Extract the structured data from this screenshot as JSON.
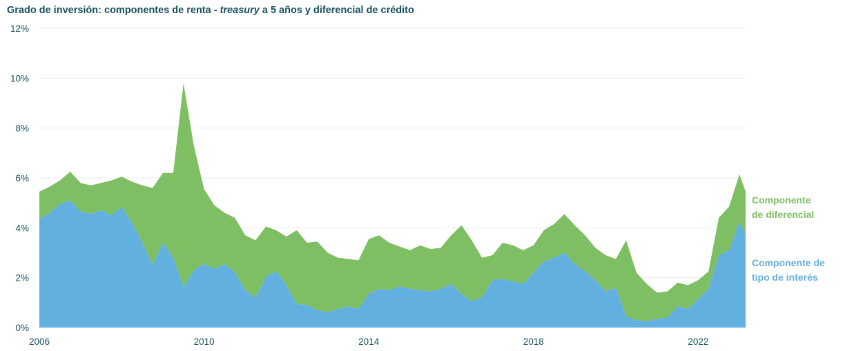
{
  "title": {
    "part1": "Grado de inversión: componentes de renta - ",
    "italic": "treasury",
    "part2": " a 5 años y diferencial de crédito"
  },
  "colors": {
    "title": "#16515f",
    "spread": "#7fbf63",
    "rate": "#62b0e0",
    "axis": "#16515f",
    "grid": "#e8ebee"
  },
  "chart_data": {
    "type": "area",
    "stacked": true,
    "title": "Grado de inversión: componentes de renta - treasury a 5 años y diferencial de crédito",
    "xlabel": "",
    "ylabel": "",
    "xlim": [
      2006.0,
      2023.15
    ],
    "ylim": [
      0,
      12
    ],
    "grid": true,
    "legend": "right",
    "x_ticks": [
      "2006",
      "2010",
      "2014",
      "2018",
      "2022"
    ],
    "y_ticks": [
      "0%",
      "2%",
      "4%",
      "6%",
      "8%",
      "10%",
      "12%"
    ],
    "x": [
      2006.0,
      2006.25,
      2006.5,
      2006.75,
      2007.0,
      2007.25,
      2007.5,
      2007.75,
      2008.0,
      2008.25,
      2008.5,
      2008.75,
      2009.0,
      2009.25,
      2009.5,
      2009.75,
      2010.0,
      2010.25,
      2010.5,
      2010.75,
      2011.0,
      2011.25,
      2011.5,
      2011.75,
      2012.0,
      2012.25,
      2012.5,
      2012.75,
      2013.0,
      2013.25,
      2013.5,
      2013.75,
      2014.0,
      2014.25,
      2014.5,
      2014.75,
      2015.0,
      2015.25,
      2015.5,
      2015.75,
      2016.0,
      2016.25,
      2016.5,
      2016.75,
      2017.0,
      2017.25,
      2017.5,
      2017.75,
      2018.0,
      2018.25,
      2018.5,
      2018.75,
      2019.0,
      2019.25,
      2019.5,
      2019.75,
      2020.0,
      2020.25,
      2020.5,
      2020.75,
      2021.0,
      2021.25,
      2021.5,
      2021.75,
      2022.0,
      2022.25,
      2022.5,
      2022.75,
      2023.0,
      2023.15
    ],
    "series": [
      {
        "name": "Componente de tipo de interés",
        "values": [
          4.35,
          4.6,
          4.95,
          5.1,
          4.65,
          4.55,
          4.7,
          4.5,
          4.85,
          4.2,
          3.4,
          2.5,
          3.4,
          2.8,
          1.6,
          2.3,
          2.55,
          2.35,
          2.55,
          2.2,
          1.5,
          1.2,
          2.05,
          2.25,
          1.7,
          0.95,
          0.9,
          0.7,
          0.6,
          0.75,
          0.85,
          0.75,
          1.35,
          1.55,
          1.5,
          1.65,
          1.55,
          1.5,
          1.45,
          1.55,
          1.75,
          1.35,
          1.05,
          1.2,
          1.9,
          1.95,
          1.85,
          1.75,
          2.2,
          2.65,
          2.8,
          3.0,
          2.55,
          2.25,
          1.9,
          1.45,
          1.6,
          0.45,
          0.3,
          0.25,
          0.35,
          0.4,
          0.85,
          0.75,
          1.15,
          1.55,
          2.9,
          3.1,
          4.25,
          3.7
        ]
      },
      {
        "name": "Componente de diferencial",
        "values": [
          1.1,
          1.05,
          0.95,
          1.15,
          1.15,
          1.15,
          1.1,
          1.4,
          1.2,
          1.65,
          2.3,
          3.1,
          2.8,
          3.4,
          8.2,
          5.0,
          3.0,
          2.55,
          2.05,
          2.2,
          2.2,
          2.3,
          2.0,
          1.65,
          1.95,
          2.95,
          2.5,
          2.75,
          2.4,
          2.05,
          1.9,
          1.95,
          2.2,
          2.15,
          1.9,
          1.6,
          1.55,
          1.8,
          1.7,
          1.65,
          1.95,
          2.75,
          2.45,
          1.6,
          1.0,
          1.45,
          1.45,
          1.35,
          1.1,
          1.25,
          1.35,
          1.55,
          1.55,
          1.45,
          1.3,
          1.45,
          1.15,
          3.05,
          1.9,
          1.5,
          1.05,
          1.05,
          0.95,
          0.95,
          0.75,
          0.7,
          1.5,
          1.75,
          1.9,
          1.75
        ]
      }
    ]
  },
  "labels": {
    "spread_line1": "Componente",
    "spread_line2": "de diferencial",
    "rate_line1": "Componente de",
    "rate_line2": "tipo de interés"
  }
}
